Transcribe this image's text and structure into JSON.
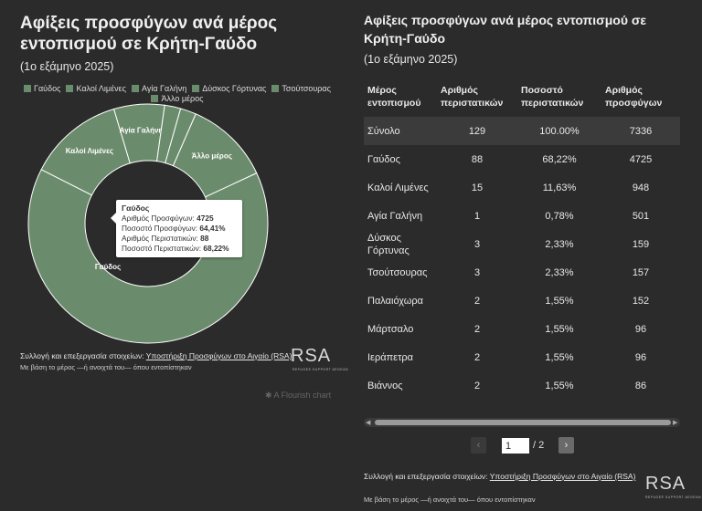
{
  "left": {
    "title": "Αφίξεις προσφύγων ανά μέρος εντοπισμού σε Κρήτη-Γαύδο",
    "subtitle": "(1ο εξάμηνο 2025)",
    "legend": [
      "Γαύδος",
      "Καλοί Λιμένες",
      "Αγία Γαλήνη",
      "Δύσκος Γόρτυνας",
      "Τσούτσουρας",
      "Άλλο μέρος"
    ],
    "slice_color": "#6b8c6c",
    "tooltip": {
      "title": "Γαύδος",
      "l1": "Αριθμός Προσφύγων: ",
      "v1": "4725",
      "l2": "Ποσοστό Προσφύγων: ",
      "v2": "64,41%",
      "l3": "Αριθμός Περιστατικών: ",
      "v3": "88",
      "l4": "Ποσοστό Περιστατικών: ",
      "v4": "68,22%"
    },
    "source_label": "Συλλογή και επεξεργασία στοιχείων: ",
    "source_link": "Υποστήριξη Προσφύγων στο Αιγαίο (RSA)",
    "note": "Με βάση το μέρος —ή ανοιχτά του— όπου εντοπίστηκαν",
    "logo": "RSA",
    "logo_sub": "REFUGEE SUPPORT AEGEAN",
    "flourish": "A Flourish chart"
  },
  "chart_data": {
    "type": "pie",
    "variant": "donut",
    "categories": [
      "Γαύδος",
      "Καλοί Λιμένες",
      "Αγία Γαλήνη",
      "Δύσκος Γόρτυνας",
      "Τσούτσουρας",
      "Άλλο μέρος"
    ],
    "values": [
      4725,
      948,
      501,
      159,
      157,
      846
    ],
    "slice_labels": [
      "Γαύδος",
      "Καλοί Λιμένες",
      "Αγία Γαλήνη",
      "",
      "",
      "Άλλο μέρος"
    ],
    "highlighted": "Γαύδος"
  },
  "right": {
    "title": "Αφίξεις προσφύγων ανά μέρος εντοπισμού σε Κρήτη-Γαύδο",
    "subtitle": "(1ο εξάμηνο 2025)",
    "headers": [
      "Μέρος εντοπισμού",
      "Αριθμός περιστατικών",
      "Ποσοστό περιστατικών",
      "Αριθμός προσφύγων"
    ],
    "rows": [
      [
        "Σύνολο",
        "129",
        "100.00%",
        "7336"
      ],
      [
        "Γαύδος",
        "88",
        "68,22%",
        "4725"
      ],
      [
        "Καλοί Λιμένες",
        "15",
        "11,63%",
        "948"
      ],
      [
        "Αγία Γαλήνη",
        "1",
        "0,78%",
        "501"
      ],
      [
        "Δύσκος Γόρτυνας",
        "3",
        "2,33%",
        "159"
      ],
      [
        "Τσούτσουρας",
        "3",
        "2,33%",
        "157"
      ],
      [
        "Παλαιόχωρα",
        "2",
        "1,55%",
        "152"
      ],
      [
        "Μάρτσαλο",
        "2",
        "1,55%",
        "96"
      ],
      [
        "Ιεράπετρα",
        "2",
        "1,55%",
        "96"
      ],
      [
        "Βιάννος",
        "2",
        "1,55%",
        "86"
      ]
    ],
    "pagination": {
      "current": "1",
      "total": "/ 2",
      "prev": "‹",
      "next": "›"
    },
    "scroll_left": "◀",
    "scroll_right": "▶",
    "source_label": "Συλλογή και επεξεργασία στοιχείων: ",
    "source_link": "Υποστήριξη Προσφύγων στο Αιγαίο (RSA)",
    "note": "Με βάση το μέρος —ή ανοιχτά του— όπου εντοπίστηκαν",
    "logo": "RSA",
    "logo_sub": "REFUGEE SUPPORT AEGEAN"
  }
}
